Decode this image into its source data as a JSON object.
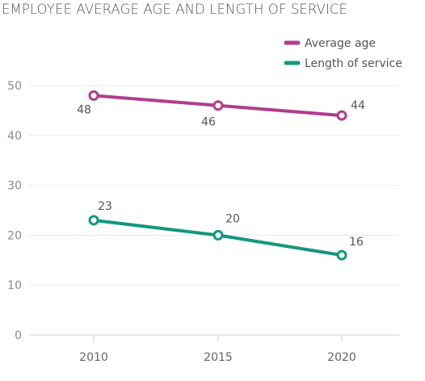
{
  "chart_data": {
    "type": "line",
    "title": "EMPLOYEE AVERAGE AGE AND LENGTH OF SERVICE",
    "x": [
      "2010",
      "2015",
      "2020"
    ],
    "ylim": [
      0,
      50
    ],
    "yticks": [
      "0",
      "10",
      "20",
      "30",
      "40",
      "50"
    ],
    "grid": true,
    "legend_position": "top-right",
    "series": [
      {
        "name": "Average age",
        "values": [
          48,
          46,
          44
        ],
        "labels": [
          "48",
          "46",
          "44"
        ],
        "color": "#b23c8d"
      },
      {
        "name": "Length of service",
        "values": [
          23,
          20,
          16
        ],
        "labels": [
          "23",
          "20",
          "16"
        ],
        "color": "#13977e"
      }
    ]
  }
}
